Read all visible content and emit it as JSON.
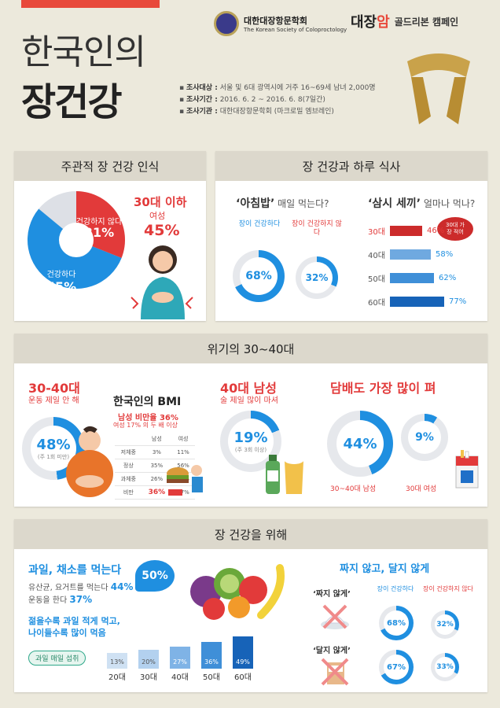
{
  "header": {
    "title_line1": "한국인의",
    "title_line2": "장건강",
    "society_ko": "대한대장항문학회",
    "society_en": "The Korean Society of Coloproctology",
    "campaign_logo_a": "대장",
    "campaign_logo_b": "암",
    "campaign_name": "골드리본 캠페인",
    "survey": [
      {
        "label": "조사대상 :",
        "value": "서울 및 6대 광역시에 거주 16~69세 남녀 2,000명"
      },
      {
        "label": "조사기간 :",
        "value": "2016. 6. 2 ~ 2016. 6. 8(7일간)"
      },
      {
        "label": "조사기관 :",
        "value": "대한대장항문학회 (마크로밀 엠브레인)"
      }
    ]
  },
  "sec1": {
    "title": "주관적 장 건강 인식",
    "unhealthy_label": "건강하지 않다",
    "unhealthy_pct": "31%",
    "healthy_label": "건강하다",
    "healthy_pct": "55%",
    "callout_title": "30대 이하",
    "callout_sub": "여성",
    "callout_pct": "45%",
    "values": {
      "healthy": 55,
      "unhealthy": 31
    }
  },
  "sec2": {
    "title": "장 건강과 하루 식사",
    "breakfast_q": "‘아침밥’",
    "breakfast_q_rest": "매일 먹는다?",
    "healthy_label": "장이 건강하다",
    "unhealthy_label": "장이 건강하지 않다",
    "healthy_pct": "68%",
    "unhealthy_pct": "32%",
    "healthy_value": 68,
    "unhealthy_value": 32,
    "meals_q": "‘삼시 세끼’",
    "meals_q_rest": "얼마나 먹나?",
    "badge": "30대 가장 적어",
    "bars": [
      {
        "age": "30대",
        "pct": "46%",
        "value": 46,
        "color": "#cc2b2b"
      },
      {
        "age": "40대",
        "pct": "58%",
        "value": 58,
        "color": "#6fa9e0"
      },
      {
        "age": "50대",
        "pct": "62%",
        "value": 62,
        "color": "#3f8fd8"
      },
      {
        "age": "60대",
        "pct": "77%",
        "value": 77,
        "color": "#1763b8"
      }
    ]
  },
  "sec3": {
    "title": "위기의 30~40대",
    "a_title": "30-40대",
    "a_sub": "운동 제일 안 해",
    "a_pct": "48%",
    "a_note": "(주 1회 미만)",
    "a_value": 48,
    "bmi_title": "한국인의 BMI",
    "bmi_sub1": "남성 비만율 36%",
    "bmi_sub2": "여성 17% 의 두 배 이상",
    "bmi_head": [
      "",
      "남성",
      "여성"
    ],
    "bmi_rows": [
      [
        "저체중",
        "3%",
        "11%"
      ],
      [
        "정상",
        "35%",
        "56%"
      ],
      [
        "과체중",
        "26%",
        "16%"
      ],
      [
        "비만",
        "36%",
        "17%"
      ]
    ],
    "b_title": "40대 남성",
    "b_sub": "술 제일 많이 마셔",
    "b_pct": "19%",
    "b_note": "(주 3회 이상)",
    "b_value": 19,
    "c_title": "담배도 가장 많이 펴",
    "c_pct1": "44%",
    "c_label1": "30~40대 남성",
    "c_value1": 44,
    "c_pct2": "9%",
    "c_label2": "30대 여성",
    "c_value2": 9
  },
  "sec4": {
    "title": "장 건강을 위해",
    "fruit_title": "과일, 채소를 먹는다",
    "fruit_badge": "50%",
    "line1": "유산균, 요거트를 먹는다",
    "line1_pct": "44%",
    "line2": "운동을 한다",
    "line2_pct": "37%",
    "age_note1": "젊을수록 과일 적게 먹고,",
    "age_note2": "나이들수록 많이 먹음",
    "pill": "과일 매일 섭취",
    "fruit_bars": [
      {
        "age": "20대",
        "pct": "13%",
        "value": 13,
        "color": "#cfe1f3"
      },
      {
        "age": "30대",
        "pct": "20%",
        "value": 20,
        "color": "#b3d1ef"
      },
      {
        "age": "40대",
        "pct": "27%",
        "value": 27,
        "color": "#7fb3e6"
      },
      {
        "age": "50대",
        "pct": "36%",
        "value": 36,
        "color": "#3f8fd8"
      },
      {
        "age": "60대",
        "pct": "49%",
        "value": 49,
        "color": "#1763b8"
      }
    ],
    "salty_title": "짜지 않고, 달지 않게",
    "salty_label": "‘짜지 않게’",
    "sweet_label": "‘달지 않게’",
    "healthy_label": "장이 건강하다",
    "unhealthy_label": "장이 건강하지 않다",
    "salty_h": "68%",
    "salty_u": "32%",
    "sweet_h": "67%",
    "sweet_u": "33%",
    "salty_h_value": 68,
    "salty_u_value": 32,
    "sweet_h_value": 67,
    "sweet_u_value": 33
  }
}
